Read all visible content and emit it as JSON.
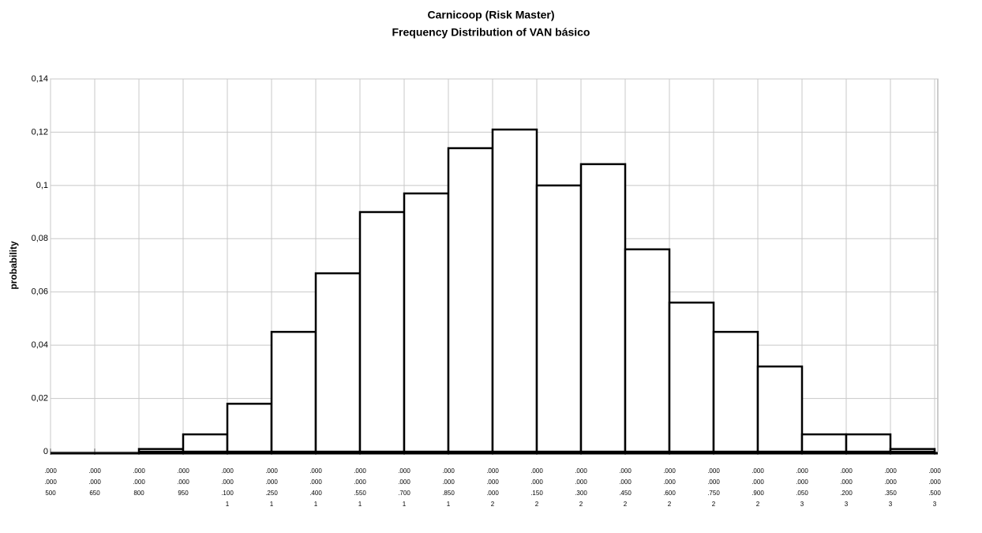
{
  "chart_data": {
    "type": "histogram",
    "title": "Carnicoop (Risk Master)",
    "subtitle": "Frequency Distribution of VAN básico",
    "y_label": "probability",
    "bins": [
      800000000,
      950000000,
      1100000000,
      1250000000,
      1400000000,
      1550000000,
      1700000000,
      1850000000,
      2000000000,
      2150000000,
      2300000000,
      2450000000,
      2600000000,
      2750000000,
      2900000000,
      3050000000,
      3200000000,
      3350000000,
      3500000000
    ],
    "values": [
      0.001,
      0.0065,
      0.018,
      0.045,
      0.067,
      0.09,
      0.097,
      0.114,
      0.121,
      0.1,
      0.108,
      0.076,
      0.056,
      0.045,
      0.032,
      0.0065,
      0.0065,
      0.001
    ],
    "color": "#000000",
    "xlim": [
      500000000,
      3500000000
    ],
    "xticks": [
      {
        "value": 500000000,
        "label": ".000\n.000\n500"
      },
      {
        "value": 650000000,
        "label": ".000\n.000\n650"
      },
      {
        "value": 800000000,
        "label": ".000\n.000\n800"
      },
      {
        "value": 950000000,
        "label": ".000\n.000\n950"
      },
      {
        "value": 1100000000,
        "label": ".000\n.000\n.100\n1"
      },
      {
        "value": 1250000000,
        "label": ".000\n.000\n.250\n1"
      },
      {
        "value": 1400000000,
        "label": ".000\n.000\n.400\n1"
      },
      {
        "value": 1550000000,
        "label": ".000\n.000\n.550\n1"
      },
      {
        "value": 1700000000,
        "label": ".000\n.000\n.700\n1"
      },
      {
        "value": 1850000000,
        "label": ".000\n.000\n.850\n1"
      },
      {
        "value": 2000000000,
        "label": ".000\n.000\n.000\n2"
      },
      {
        "value": 2150000000,
        "label": ".000\n.000\n.150\n2"
      },
      {
        "value": 2300000000,
        "label": ".000\n.000\n.300\n2"
      },
      {
        "value": 2450000000,
        "label": ".000\n.000\n.450\n2"
      },
      {
        "value": 2600000000,
        "label": ".000\n.000\n.600\n2"
      },
      {
        "value": 2750000000,
        "label": ".000\n.000\n.750\n2"
      },
      {
        "value": 2900000000,
        "label": ".000\n.000\n.900\n2"
      },
      {
        "value": 3050000000,
        "label": ".000\n.000\n.050\n3"
      },
      {
        "value": 3200000000,
        "label": ".000\n.000\n.200\n3"
      },
      {
        "value": 3350000000,
        "label": ".000\n.000\n.350\n3"
      },
      {
        "value": 3500000000,
        "label": ".000\n.000\n.500\n3"
      }
    ],
    "ylim": [
      0,
      0.14
    ],
    "yticks": [
      0,
      {
        "value": 0.02,
        "label": "0,02"
      },
      {
        "value": 0.04,
        "label": "0,04"
      },
      {
        "value": 0.06,
        "label": "0,06"
      },
      {
        "value": 0.08,
        "label": "0,08"
      },
      {
        "value": 0.1,
        "label": "0,1"
      },
      {
        "value": 0.12,
        "label": "0,12"
      },
      {
        "value": 0.14,
        "label": "0,14"
      }
    ],
    "grid": true
  }
}
